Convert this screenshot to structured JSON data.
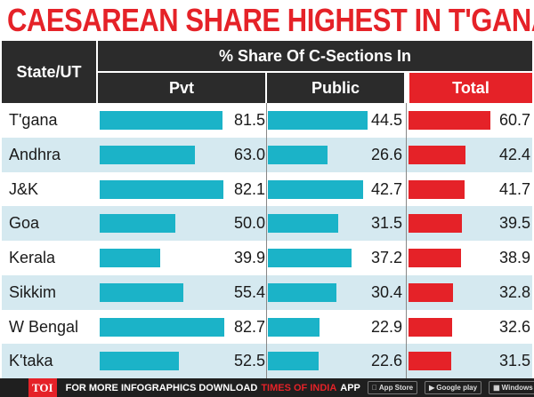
{
  "title": "CAESAREAN SHARE HIGHEST IN T'GANA",
  "header": {
    "state_label": "State/UT",
    "group_label": "% Share Of C-Sections In",
    "col_pvt": "Pvt",
    "col_public": "Public",
    "col_total": "Total"
  },
  "colors": {
    "title": "#e52228",
    "blue_bar": "#1bb3c8",
    "red_bar": "#e52228",
    "row_alt": "#d5e9f0",
    "header_bg": "#2b2b2b"
  },
  "chart_data": {
    "type": "table",
    "title": "CAESAREAN SHARE HIGHEST IN T'GANA",
    "columns": [
      "State/UT",
      "Pvt",
      "Public",
      "Total"
    ],
    "categories": [
      "T'gana",
      "Andhra",
      "J&K",
      "Goa",
      "Kerala",
      "Sikkim",
      "W Bengal",
      "K'taka"
    ],
    "series": [
      {
        "name": "Pvt",
        "values": [
          81.5,
          63.0,
          82.1,
          50.0,
          39.9,
          55.4,
          82.7,
          52.5
        ]
      },
      {
        "name": "Public",
        "values": [
          44.5,
          26.6,
          42.7,
          31.5,
          37.2,
          30.4,
          22.9,
          22.6
        ]
      },
      {
        "name": "Total",
        "values": [
          60.7,
          42.4,
          41.7,
          39.5,
          38.9,
          32.8,
          32.6,
          31.5
        ]
      }
    ],
    "value_labels": {
      "Pvt": [
        "81.5",
        "63.0",
        "82.1",
        "50.0",
        "39.9",
        "55.4",
        "82.7",
        "52.5"
      ],
      "Public": [
        "44.5",
        "26.6",
        "42.7",
        "31.5",
        "37.2",
        "30.4",
        "22.9",
        "22.6"
      ],
      "Total": [
        "60.7",
        "42.4",
        "41.7",
        "39.5",
        "38.9",
        "32.8",
        "32.6",
        "31.5"
      ]
    }
  },
  "footer": {
    "badge": "TOI",
    "text": "FOR MORE INFOGRAPHICS DOWNLOAD",
    "brand": "TIMES OF INDIA",
    "app": "APP",
    "stores": [
      "App Store",
      "Google play",
      "Windows Phone"
    ],
    "store_icons": [
      "apple-icon",
      "play-icon",
      "windows-icon"
    ]
  }
}
